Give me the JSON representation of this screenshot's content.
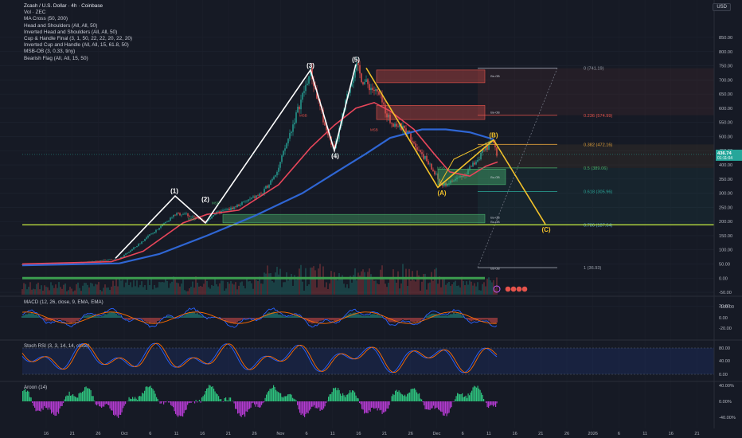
{
  "legend": {
    "title": "Zcash / U.S. Dollar · 4h · Coinbase",
    "items": [
      "Vol · ZEC",
      "MA Cross (50, 200)",
      "Head and Shoulders (All, All, 50)",
      "Inverted Head and Shoulders (All, All, 50)",
      "Cup & Handle Final (3, 1, 50, 22, 22, 20, 22, 20)",
      "Inverted Cup and Handle (All, All, 15, 61.8, 50)",
      "MSB-OB (3, 0.33, tiny)",
      "Bearish Flag (All, All, 15, 50)"
    ]
  },
  "currency": "USD",
  "price_axis_labels": [
    "850.00",
    "800.00",
    "750.00",
    "700.00",
    "650.00",
    "600.00",
    "550.00",
    "500.00",
    "450.00",
    "400.00",
    "350.00",
    "300.00",
    "250.00",
    "200.00",
    "150.00",
    "100.00",
    "50.00",
    "0.00",
    "-50.00",
    "-100.00"
  ],
  "current_price": {
    "value": "436.74",
    "countdown": "01:11:04"
  },
  "wave_labels": [
    "(1)",
    "(2)",
    "(3)",
    "(4)",
    "(5)",
    "(A)",
    "(B)",
    "(C)"
  ],
  "fib_levels": [
    {
      "label": "0 (741.19)",
      "color": "#9aa0ab"
    },
    {
      "label": "0.236 (574.99)",
      "color": "#e5534b"
    },
    {
      "label": "0.382 (472.16)",
      "color": "#e0a03a"
    },
    {
      "label": "0.5 (389.06)",
      "color": "#48b06a"
    },
    {
      "label": "0.618 (305.96)",
      "color": "#2aa89a"
    },
    {
      "label": "0.786 (187.64)",
      "color": "#56b3e0"
    },
    {
      "label": "1 (36.93)",
      "color": "#9aa0ab"
    }
  ],
  "msb_labels": [
    "MSB",
    "MSB",
    "MSB",
    "MSB",
    "MSB"
  ],
  "ob_labels": [
    "Bu-OB",
    "Bu-OB",
    "Bu-OB",
    "Bu-OB",
    "Be-OB",
    "Be-OB"
  ],
  "macd": {
    "title": "MACD (12, 26, close, 9, EMA, EMA)",
    "axis": [
      "20.00",
      "0.00",
      "-20.00"
    ]
  },
  "stoch": {
    "title": "Stoch RSI (3, 3, 14, 14, close)",
    "axis": [
      "80.00",
      "40.00",
      "0.00"
    ]
  },
  "aroon": {
    "title": "Aroon (14)",
    "axis": [
      "40.00%",
      "0.00%",
      "-40.00%"
    ]
  },
  "time_axis": [
    "16",
    "21",
    "26",
    "Oct",
    "6",
    "11",
    "16",
    "21",
    "26",
    "Nov",
    "6",
    "11",
    "16",
    "21",
    "26",
    "Dec",
    "6",
    "11",
    "16",
    "21",
    "26",
    "2026",
    "6",
    "11",
    "16",
    "21"
  ],
  "colors": {
    "bg": "#161a25",
    "ma50": "#e8465a",
    "ma200": "#2f66d4",
    "wave": "#ffffff",
    "abc": "#f3c22a",
    "up": "#26a69a",
    "down": "#ef5350",
    "support": "#b9dc3e",
    "macd": "#2962ff",
    "signal": "#ff6d00",
    "stoch_k": "#2962ff",
    "stoch_d": "#ff6d00",
    "aroon_up": "#2ec27e",
    "aroon_down": "#b43bd1"
  }
}
